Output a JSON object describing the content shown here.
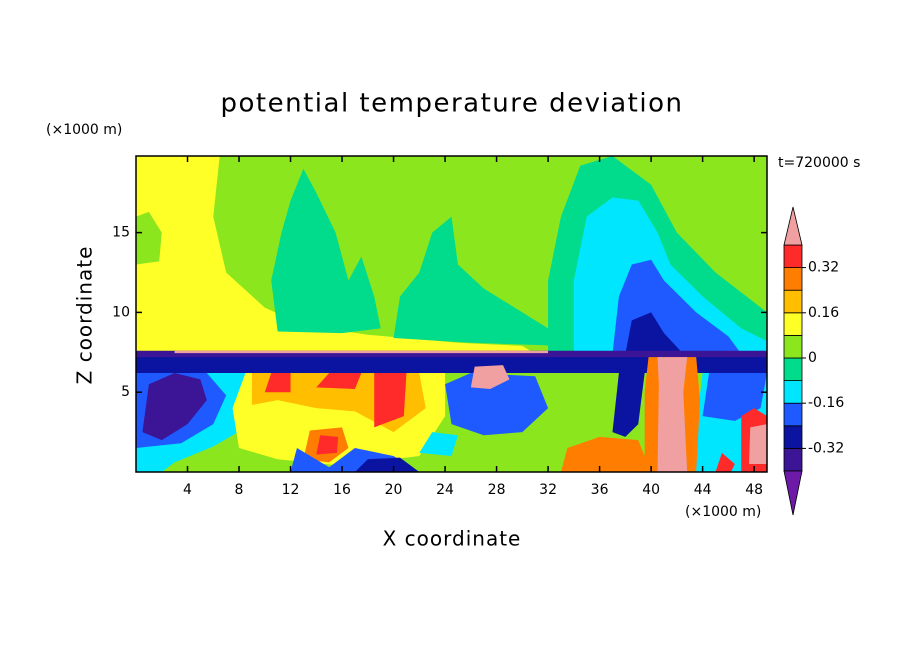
{
  "chart_data": {
    "type": "contour",
    "title": "potential temperature deviation",
    "x_label": "X coordinate",
    "y_label": "Z coordinate",
    "x_unit": "(×1000 m)",
    "y_unit": "(×1000 m)",
    "time_label": "t=720000 s",
    "xlim": [
      0,
      49
    ],
    "xticks": [
      4,
      8,
      12,
      16,
      20,
      24,
      28,
      32,
      36,
      40,
      44,
      48
    ],
    "ylim": [
      0,
      19.8
    ],
    "yticks": [
      5,
      10,
      15
    ],
    "clim": [
      -0.4,
      0.4
    ],
    "cticks": [
      -0.32,
      -0.16,
      0,
      0.16,
      0.32
    ],
    "colors": [
      "#6e1aa8",
      "#3c1496",
      "#0a14a0",
      "#1e5aff",
      "#00e6ff",
      "#00dc8c",
      "#8ce61e",
      "#ffff28",
      "#ffbe00",
      "#ff7d00",
      "#ff2a2a",
      "#f0a0a0"
    ],
    "colorbar_extend": "both"
  }
}
